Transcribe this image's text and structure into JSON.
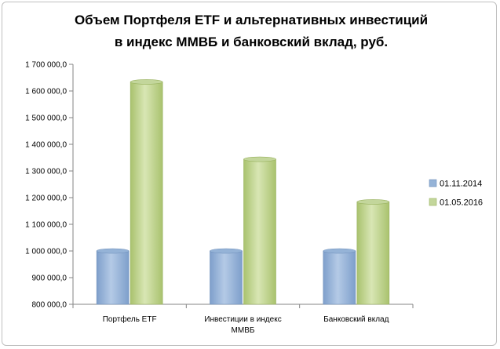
{
  "chart_data": {
    "type": "bar",
    "title_line1": "Объем Портфеля ETF и альтернативных  инвестиций",
    "title_line2": "в индекс ММВБ и банковский  вклад,  руб.",
    "categories": [
      "Портфель ETF",
      "Инвестиции в индекс ММВБ",
      "Банковский вклад"
    ],
    "category_lines": [
      [
        "Портфель ETF"
      ],
      [
        "Инвестиции в индекс",
        "ММВБ"
      ],
      [
        "Банковский вклад"
      ]
    ],
    "series": [
      {
        "name": "01.11.2014",
        "values": [
          1000000,
          1000000,
          1000000
        ],
        "color": "#95B3D7"
      },
      {
        "name": "01.05.2016",
        "values": [
          1634000,
          1344000,
          1184000
        ],
        "color": "#C3D69B"
      }
    ],
    "yticks": [
      "800 000,0",
      "900 000,0",
      "1 000 000,0",
      "1 100 000,0",
      "1 200 000,0",
      "1 300 000,0",
      "1 400 000,0",
      "1 500 000,0",
      "1 600 000,0",
      "1 700 000,0"
    ],
    "ylim": [
      800000,
      1700000
    ],
    "ystep": 100000,
    "legend_position": "right",
    "grid": false
  }
}
